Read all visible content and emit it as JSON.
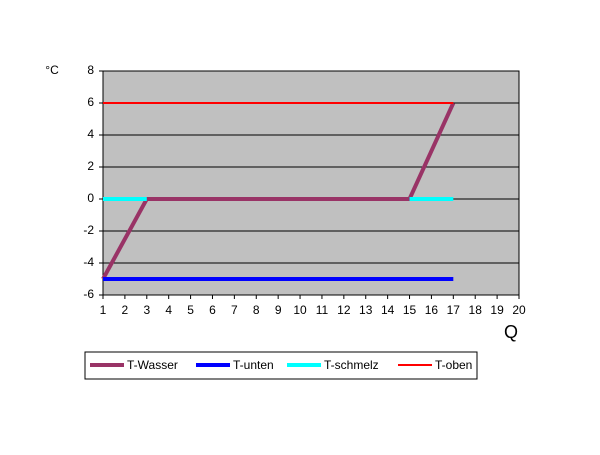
{
  "chart_data": {
    "type": "line",
    "y_label": "°C",
    "x_label": "Q",
    "xlim": [
      1,
      20
    ],
    "xticks": [
      1,
      2,
      3,
      4,
      5,
      6,
      7,
      8,
      9,
      10,
      11,
      12,
      13,
      14,
      15,
      16,
      17,
      18,
      19,
      20
    ],
    "ylim": [
      -6,
      8
    ],
    "yticks": [
      -6,
      -4,
      -2,
      0,
      2,
      4,
      6,
      8
    ],
    "grid": true,
    "background": "#c0c0c0",
    "legend": "bottom",
    "series": [
      {
        "name": "T-Wasser",
        "color": "#993366",
        "width": 4,
        "x": [
          1,
          3,
          15,
          17
        ],
        "values": [
          -5,
          0,
          0,
          6
        ]
      },
      {
        "name": "T-unten",
        "color": "#0000ff",
        "width": 4,
        "x": [
          1,
          17
        ],
        "values": [
          -5,
          -5
        ]
      },
      {
        "name": "T-schmelz",
        "color": "#00ffff",
        "width": 4,
        "x": [
          1,
          3,
          null,
          15,
          17
        ],
        "values": [
          0,
          0,
          null,
          0,
          0
        ]
      },
      {
        "name": "T-oben",
        "color": "#ff0000",
        "width": 2,
        "x": [
          1,
          17
        ],
        "values": [
          6,
          6
        ]
      }
    ]
  }
}
